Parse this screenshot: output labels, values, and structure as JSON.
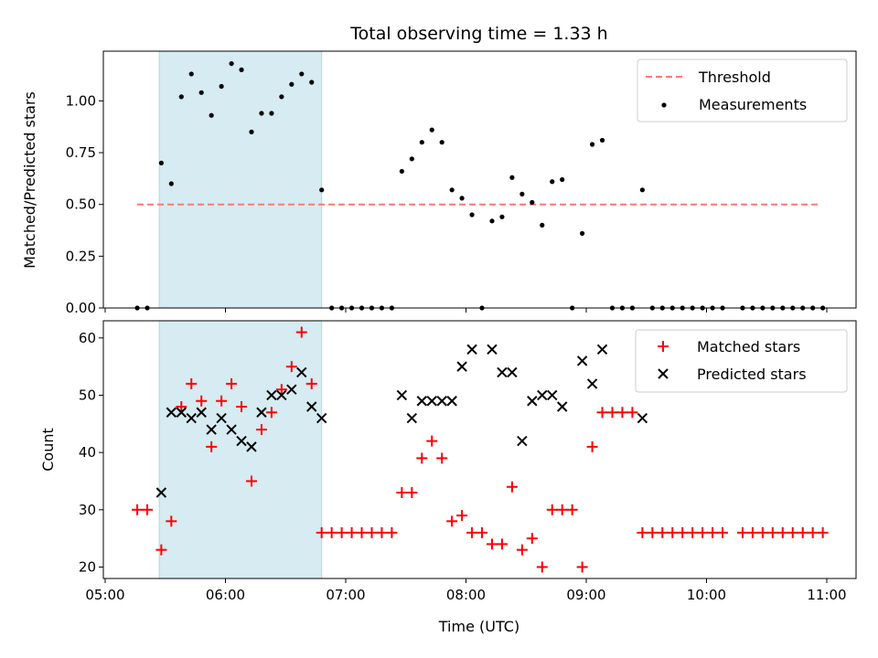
{
  "chart_data": {
    "title": "Total observing time = 1.33 h",
    "xlabel": "Time (UTC)",
    "x_range": [
      "05:00",
      "11:00"
    ],
    "x_ticks": [
      "05:00",
      "06:00",
      "07:00",
      "08:00",
      "09:00",
      "10:00",
      "11:00"
    ],
    "highlight_span": {
      "start": "05:27",
      "end": "06:48",
      "color": "#add8e6"
    },
    "panels": [
      {
        "type": "scatter",
        "ylabel": "Matched/Predicted stars",
        "ylim": [
          0,
          1.24
        ],
        "y_ticks": [
          "0.00",
          "0.25",
          "0.50",
          "0.75",
          "1.00"
        ],
        "threshold": {
          "name": "Threshold",
          "value": 0.5,
          "x_start": "05:16",
          "x_end": "10:57",
          "color": "#ff7777"
        },
        "series": [
          {
            "name": "Measurements",
            "color": "#000000",
            "points": [
              [
                "05:16",
                0
              ],
              [
                "05:21",
                0
              ],
              [
                "05:28",
                0.7
              ],
              [
                "05:33",
                0.6
              ],
              [
                "05:38",
                1.02
              ],
              [
                "05:43",
                1.13
              ],
              [
                "05:48",
                1.04
              ],
              [
                "05:53",
                0.93
              ],
              [
                "05:58",
                1.07
              ],
              [
                "06:03",
                1.18
              ],
              [
                "06:08",
                1.15
              ],
              [
                "06:13",
                0.85
              ],
              [
                "06:18",
                0.94
              ],
              [
                "06:23",
                0.94
              ],
              [
                "06:28",
                1.02
              ],
              [
                "06:33",
                1.08
              ],
              [
                "06:38",
                1.13
              ],
              [
                "06:43",
                1.09
              ],
              [
                "06:48",
                0.57
              ],
              [
                "06:53",
                0
              ],
              [
                "06:58",
                0
              ],
              [
                "07:03",
                0
              ],
              [
                "07:08",
                0
              ],
              [
                "07:13",
                0
              ],
              [
                "07:18",
                0
              ],
              [
                "07:23",
                0
              ],
              [
                "07:28",
                0.66
              ],
              [
                "07:33",
                0.72
              ],
              [
                "07:38",
                0.8
              ],
              [
                "07:43",
                0.86
              ],
              [
                "07:48",
                0.8
              ],
              [
                "07:53",
                0.57
              ],
              [
                "07:58",
                0.53
              ],
              [
                "08:03",
                0.45
              ],
              [
                "08:08",
                0
              ],
              [
                "08:13",
                0.42
              ],
              [
                "08:18",
                0.44
              ],
              [
                "08:23",
                0.63
              ],
              [
                "08:28",
                0.55
              ],
              [
                "08:33",
                0.51
              ],
              [
                "08:38",
                0.4
              ],
              [
                "08:43",
                0.61
              ],
              [
                "08:48",
                0.62
              ],
              [
                "08:53",
                0
              ],
              [
                "08:58",
                0.36
              ],
              [
                "09:03",
                0.79
              ],
              [
                "09:08",
                0.81
              ],
              [
                "09:13",
                0
              ],
              [
                "09:18",
                0
              ],
              [
                "09:23",
                0
              ],
              [
                "09:28",
                0.57
              ],
              [
                "09:33",
                0
              ],
              [
                "09:38",
                0
              ],
              [
                "09:43",
                0
              ],
              [
                "09:48",
                0
              ],
              [
                "09:53",
                0
              ],
              [
                "09:58",
                0
              ],
              [
                "10:03",
                0
              ],
              [
                "10:08",
                0
              ],
              [
                "10:18",
                0
              ],
              [
                "10:23",
                0
              ],
              [
                "10:28",
                0
              ],
              [
                "10:33",
                0
              ],
              [
                "10:38",
                0
              ],
              [
                "10:43",
                0
              ],
              [
                "10:48",
                0
              ],
              [
                "10:53",
                0
              ],
              [
                "10:58",
                0
              ]
            ]
          }
        ]
      },
      {
        "type": "scatter",
        "ylabel": "Count",
        "ylim": [
          18,
          63
        ],
        "y_ticks": [
          "20",
          "30",
          "40",
          "50",
          "60"
        ],
        "series": [
          {
            "name": "Matched stars",
            "marker": "plus",
            "color": "#ff0000",
            "points": [
              [
                "05:16",
                30
              ],
              [
                "05:21",
                30
              ],
              [
                "05:28",
                23
              ],
              [
                "05:33",
                28
              ],
              [
                "05:38",
                48
              ],
              [
                "05:43",
                52
              ],
              [
                "05:48",
                49
              ],
              [
                "05:53",
                41
              ],
              [
                "05:58",
                49
              ],
              [
                "06:03",
                52
              ],
              [
                "06:08",
                48
              ],
              [
                "06:13",
                35
              ],
              [
                "06:18",
                44
              ],
              [
                "06:23",
                47
              ],
              [
                "06:28",
                51
              ],
              [
                "06:33",
                55
              ],
              [
                "06:38",
                61
              ],
              [
                "06:43",
                52
              ],
              [
                "06:48",
                26
              ],
              [
                "06:53",
                26
              ],
              [
                "06:58",
                26
              ],
              [
                "07:03",
                26
              ],
              [
                "07:08",
                26
              ],
              [
                "07:13",
                26
              ],
              [
                "07:18",
                26
              ],
              [
                "07:23",
                26
              ],
              [
                "07:28",
                33
              ],
              [
                "07:33",
                33
              ],
              [
                "07:38",
                39
              ],
              [
                "07:43",
                42
              ],
              [
                "07:48",
                39
              ],
              [
                "07:53",
                28
              ],
              [
                "07:58",
                29
              ],
              [
                "08:03",
                26
              ],
              [
                "08:08",
                26
              ],
              [
                "08:13",
                24
              ],
              [
                "08:18",
                24
              ],
              [
                "08:23",
                34
              ],
              [
                "08:28",
                23
              ],
              [
                "08:33",
                25
              ],
              [
                "08:38",
                20
              ],
              [
                "08:43",
                30
              ],
              [
                "08:48",
                30
              ],
              [
                "08:53",
                30
              ],
              [
                "08:58",
                20
              ],
              [
                "09:03",
                41
              ],
              [
                "09:08",
                47
              ],
              [
                "09:13",
                47
              ],
              [
                "09:18",
                47
              ],
              [
                "09:23",
                47
              ],
              [
                "09:28",
                26
              ],
              [
                "09:33",
                26
              ],
              [
                "09:38",
                26
              ],
              [
                "09:43",
                26
              ],
              [
                "09:48",
                26
              ],
              [
                "09:53",
                26
              ],
              [
                "09:58",
                26
              ],
              [
                "10:03",
                26
              ],
              [
                "10:08",
                26
              ],
              [
                "10:18",
                26
              ],
              [
                "10:23",
                26
              ],
              [
                "10:28",
                26
              ],
              [
                "10:33",
                26
              ],
              [
                "10:38",
                26
              ],
              [
                "10:43",
                26
              ],
              [
                "10:48",
                26
              ],
              [
                "10:53",
                26
              ],
              [
                "10:58",
                26
              ]
            ]
          },
          {
            "name": "Predicted stars",
            "marker": "x",
            "color": "#000000",
            "points": [
              [
                "05:28",
                33
              ],
              [
                "05:33",
                47
              ],
              [
                "05:38",
                47
              ],
              [
                "05:43",
                46
              ],
              [
                "05:48",
                47
              ],
              [
                "05:53",
                44
              ],
              [
                "05:58",
                46
              ],
              [
                "06:03",
                44
              ],
              [
                "06:08",
                42
              ],
              [
                "06:13",
                41
              ],
              [
                "06:18",
                47
              ],
              [
                "06:23",
                50
              ],
              [
                "06:28",
                50
              ],
              [
                "06:33",
                51
              ],
              [
                "06:38",
                54
              ],
              [
                "06:43",
                48
              ],
              [
                "06:48",
                46
              ],
              [
                "07:28",
                50
              ],
              [
                "07:33",
                46
              ],
              [
                "07:38",
                49
              ],
              [
                "07:43",
                49
              ],
              [
                "07:48",
                49
              ],
              [
                "07:53",
                49
              ],
              [
                "07:58",
                55
              ],
              [
                "08:03",
                58
              ],
              [
                "08:13",
                58
              ],
              [
                "08:18",
                54
              ],
              [
                "08:23",
                54
              ],
              [
                "08:28",
                42
              ],
              [
                "08:33",
                49
              ],
              [
                "08:38",
                50
              ],
              [
                "08:43",
                50
              ],
              [
                "08:48",
                48
              ],
              [
                "08:58",
                56
              ],
              [
                "09:03",
                52
              ],
              [
                "09:08",
                58
              ],
              [
                "09:28",
                46
              ]
            ]
          }
        ]
      }
    ]
  }
}
